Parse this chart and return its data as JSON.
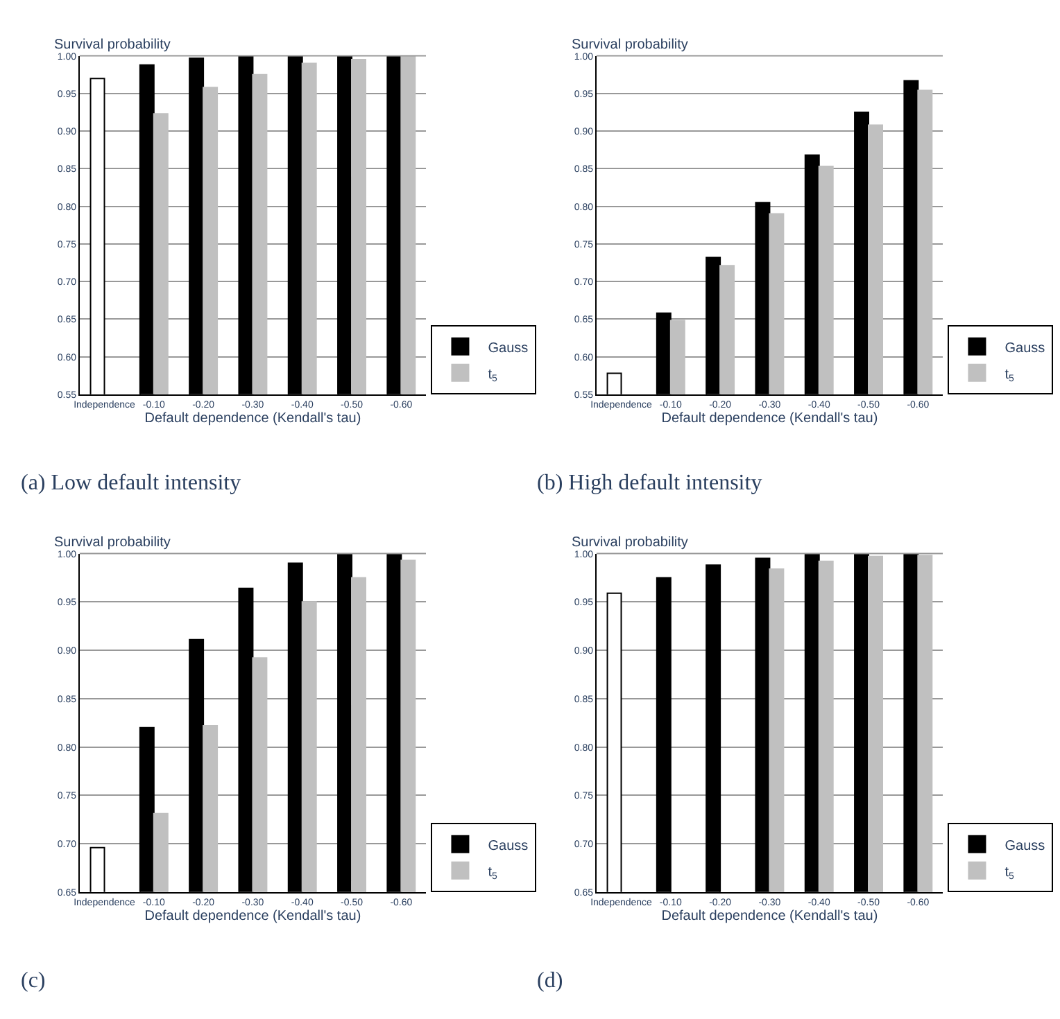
{
  "chart_data": [
    {
      "type": "bar",
      "title": "(a) Low default intensity",
      "xlabel": "Default dependence (Kendall's tau)",
      "ylabel": "Survival probability",
      "categories": [
        "Independence",
        "-0.10",
        "-0.20",
        "-0.30",
        "-0.40",
        "-0.50",
        "-0.60"
      ],
      "series": [
        {
          "color": "#ffffff",
          "values": [
            0.97,
            null,
            null,
            null,
            null,
            null,
            null
          ]
        },
        {
          "name": "Gauss",
          "color": "#000000",
          "values": [
            null,
            0.988,
            0.997,
            1.0,
            1.0,
            1.0,
            1.0
          ]
        },
        {
          "name": "t$_{5}$",
          "color": "#c0c0c0",
          "values": [
            null,
            0.923,
            0.958,
            0.975,
            0.99,
            0.995,
            1.0
          ]
        }
      ],
      "ylim": [
        0.55,
        1.0
      ],
      "yticks": [
        {
          "value": 0.55,
          "label": "0.55"
        },
        {
          "value": 0.6,
          "label": "0.60"
        },
        {
          "value": 0.65,
          "label": "0.65"
        },
        {
          "value": 0.7,
          "label": "0.70"
        },
        {
          "value": 0.75,
          "label": "0.75"
        },
        {
          "value": 0.8,
          "label": "0.80"
        },
        {
          "value": 0.85,
          "label": "0.85"
        },
        {
          "value": 0.9,
          "label": "0.90"
        },
        {
          "value": 0.95,
          "label": "0.95"
        },
        {
          "value": 1.0,
          "label": "1.00"
        }
      ],
      "grid": "y",
      "legend": "bottom right"
    },
    {
      "type": "bar",
      "title": "(b) High default intensity",
      "xlabel": "Default dependence (Kendall's tau)",
      "ylabel": "Survival probability",
      "categories": [
        "Independence",
        "-0.10",
        "-0.20",
        "-0.30",
        "-0.40",
        "-0.50",
        "-0.60"
      ],
      "series": [
        {
          "color": "#ffffff",
          "values": [
            0.578,
            null,
            null,
            null,
            null,
            null,
            null
          ]
        },
        {
          "name": "Gauss",
          "color": "#000000",
          "values": [
            null,
            0.658,
            0.732,
            0.805,
            0.868,
            0.925,
            0.967
          ]
        },
        {
          "name": "t$_{5}$",
          "color": "#c0c0c0",
          "values": [
            null,
            0.648,
            0.721,
            0.79,
            0.853,
            0.908,
            0.954
          ]
        }
      ],
      "ylim": [
        0.55,
        1.0
      ],
      "yticks": [
        {
          "value": 0.55,
          "label": "0.55"
        },
        {
          "value": 0.6,
          "label": "0.60"
        },
        {
          "value": 0.65,
          "label": "0.65"
        },
        {
          "value": 0.7,
          "label": "0.70"
        },
        {
          "value": 0.75,
          "label": "0.75"
        },
        {
          "value": 0.8,
          "label": "0.80"
        },
        {
          "value": 0.85,
          "label": "0.85"
        },
        {
          "value": 0.9,
          "label": "0.90"
        },
        {
          "value": 0.95,
          "label": "0.95"
        },
        {
          "value": 1.0,
          "label": "1.00"
        }
      ],
      "grid": "y",
      "legend": "bottom right"
    },
    {
      "type": "bar",
      "title": "(c)",
      "xlabel": "Default dependence (Kendall's tau)",
      "ylabel": "Survival probability",
      "categories": [
        "Independence",
        "-0.10",
        "-0.20",
        "-0.30",
        "-0.40",
        "-0.50",
        "-0.60"
      ],
      "series": [
        {
          "color": "#ffffff",
          "values": [
            0.696,
            null,
            null,
            null,
            null,
            null,
            null
          ]
        },
        {
          "name": "Gauss",
          "color": "#000000",
          "values": [
            null,
            0.82,
            0.911,
            0.964,
            0.99,
            1.0,
            1.0
          ]
        },
        {
          "name": "t$_{5}$",
          "color": "#c0c0c0",
          "values": [
            null,
            0.731,
            0.822,
            0.892,
            0.95,
            0.975,
            0.993
          ]
        }
      ],
      "ylim": [
        0.65,
        1.0
      ],
      "yticks": [
        {
          "value": 0.65,
          "label": "0.65"
        },
        {
          "value": 0.7,
          "label": "0.70"
        },
        {
          "value": 0.75,
          "label": "0.75"
        },
        {
          "value": 0.8,
          "label": "0.80"
        },
        {
          "value": 0.85,
          "label": "0.85"
        },
        {
          "value": 0.9,
          "label": "0.90"
        },
        {
          "value": 0.95,
          "label": "0.95"
        },
        {
          "value": 1.0,
          "label": "1.00"
        }
      ],
      "grid": "y",
      "legend": "bottom right"
    },
    {
      "type": "bar",
      "title": "(d)",
      "xlabel": "Default dependence (Kendall's tau)",
      "ylabel": "Survival probability",
      "categories": [
        "Independence",
        "-0.10",
        "-0.20",
        "-0.30",
        "-0.40",
        "-0.50",
        "-0.60"
      ],
      "series": [
        {
          "color": "#ffffff",
          "values": [
            0.959,
            null,
            null,
            null,
            null,
            null,
            null
          ]
        },
        {
          "name": "Gauss",
          "color": "#000000",
          "values": [
            null,
            0.975,
            0.988,
            0.995,
            1.0,
            1.0,
            1.0
          ]
        },
        {
          "name": "t$_{5}$",
          "color": "#c0c0c0",
          "values": [
            null,
            null,
            null,
            0.984,
            0.992,
            0.997,
            0.998
          ]
        }
      ],
      "ylim": [
        0.65,
        1.0
      ],
      "yticks": [
        {
          "value": 0.65,
          "label": "0.65"
        },
        {
          "value": 0.7,
          "label": "0.70"
        },
        {
          "value": 0.75,
          "label": "0.75"
        },
        {
          "value": 0.8,
          "label": "0.80"
        },
        {
          "value": 0.85,
          "label": "0.85"
        },
        {
          "value": 0.9,
          "label": "0.90"
        },
        {
          "value": 0.95,
          "label": "0.95"
        },
        {
          "value": 1.0,
          "label": "1.00"
        }
      ],
      "grid": "y",
      "legend": "bottom right"
    }
  ]
}
